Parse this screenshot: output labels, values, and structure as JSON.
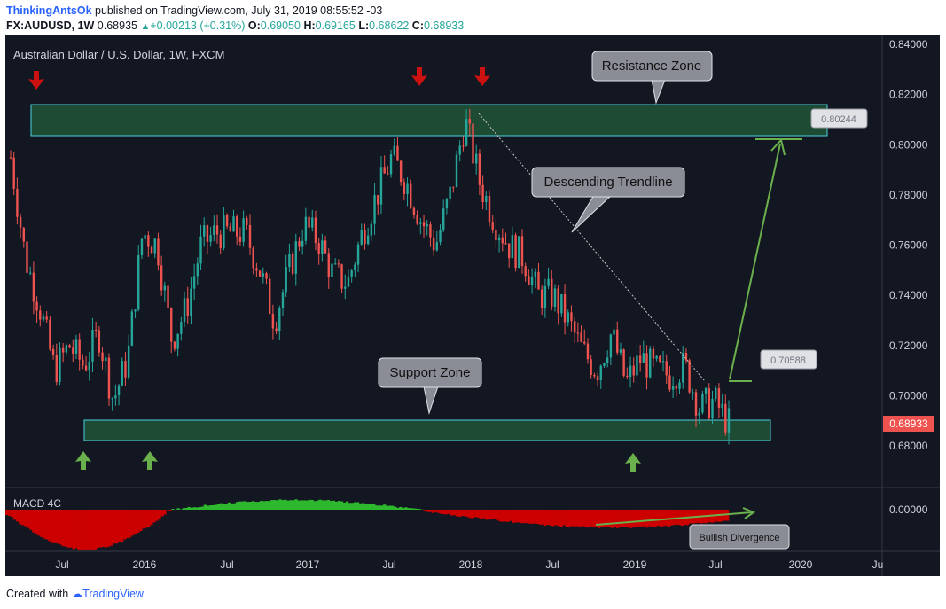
{
  "header": {
    "author": "ThinkingAntsOk",
    "published_text": "published on TradingView.com, July 31, 2019 08:55:52 -03",
    "symbol": "FX:AUDUSD, 1W",
    "last": "0.68935",
    "change": "+0.00213 (+0.31%)",
    "open_label": "O:",
    "open": "0.69050",
    "high_label": "H:",
    "high": "0.69165",
    "low_label": "L:",
    "low": "0.68622",
    "close_label": "C:",
    "close": "0.68933"
  },
  "chart_title": "Australian Dollar / U.S. Dollar, 1W, FXCM",
  "indicator_label": "MACD 4C",
  "footer": {
    "created_with": "Created with",
    "brand": "TradingView"
  },
  "colors": {
    "background": "#131722",
    "up": "#26a69a",
    "down": "#ef5350",
    "zone_fill": "#1e4b34",
    "zone_border": "#4dd0e1",
    "arrow_red": "#cc1111",
    "arrow_green": "#6ab04c",
    "macd_green": "#2eb82e",
    "macd_red": "#cc0000",
    "callout": "#8a8d96"
  },
  "chart_data": {
    "type": "line",
    "x_axis_labels": [
      "Jul",
      "2016",
      "Jul",
      "2017",
      "Jul",
      "2018",
      "Jul",
      "2019",
      "Jul",
      "2020",
      "Ju"
    ],
    "y_axis_labels": [
      "0.84000",
      "0.82000",
      "0.80000",
      "0.78000",
      "0.76000",
      "0.74000",
      "0.72000",
      "0.70000",
      "0.68000"
    ],
    "macd_axis_label": "0.00000",
    "ylim": [
      0.676,
      0.843
    ],
    "x": [
      "2015-06",
      "2015-07",
      "2015-08",
      "2015-09",
      "2015-10",
      "2015-11",
      "2015-12",
      "2016-01",
      "2016-02",
      "2016-03",
      "2016-04",
      "2016-05",
      "2016-06",
      "2016-07",
      "2016-08",
      "2016-09",
      "2016-10",
      "2016-11",
      "2016-12",
      "2017-01",
      "2017-02",
      "2017-03",
      "2017-04",
      "2017-05",
      "2017-06",
      "2017-07",
      "2017-08",
      "2017-09",
      "2017-10",
      "2017-11",
      "2017-12",
      "2018-01",
      "2018-02",
      "2018-03",
      "2018-04",
      "2018-05",
      "2018-06",
      "2018-07",
      "2018-08",
      "2018-09",
      "2018-10",
      "2018-11",
      "2018-12",
      "2019-01",
      "2019-02",
      "2019-03",
      "2019-04",
      "2019-05",
      "2019-06",
      "2019-07"
    ],
    "series": [
      {
        "values": [
          0.795,
          0.755,
          0.735,
          0.71,
          0.72,
          0.712,
          0.725,
          0.698,
          0.715,
          0.765,
          0.76,
          0.722,
          0.735,
          0.76,
          0.765,
          0.765,
          0.765,
          0.75,
          0.73,
          0.75,
          0.768,
          0.762,
          0.748,
          0.745,
          0.765,
          0.78,
          0.795,
          0.785,
          0.77,
          0.76,
          0.78,
          0.81,
          0.785,
          0.77,
          0.76,
          0.755,
          0.74,
          0.74,
          0.73,
          0.718,
          0.71,
          0.725,
          0.705,
          0.715,
          0.71,
          0.708,
          0.712,
          0.695,
          0.698,
          0.689
        ]
      }
    ],
    "levels": [
      {
        "name": "Resistance Zone",
        "low": 0.8035,
        "high": 0.8155
      },
      {
        "name": "Support Zone",
        "low": 0.6825,
        "high": 0.6905
      }
    ],
    "price_tags": {
      "last": "0.68933",
      "target": "0.80244",
      "breakout": "0.70588"
    },
    "annotations": [
      "Resistance Zone",
      "Descending Trendline",
      "Support Zone",
      "Bullish Divergence"
    ]
  }
}
